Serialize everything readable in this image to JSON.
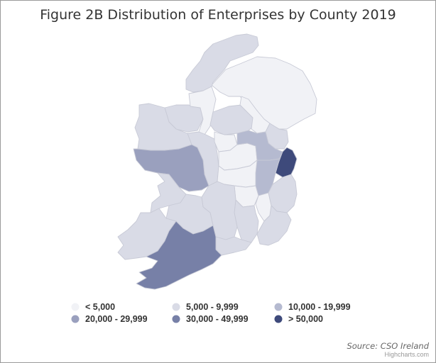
{
  "title": "Figure 2B Distribution of Enterprises by County 2019",
  "source": "Source: CSO Ireland",
  "credits": "Highcharts.com",
  "legend": [
    {
      "label": "< 5,000",
      "color": "#f1f2f6"
    },
    {
      "label": "5,000 - 9,999",
      "color": "#d9dbe6"
    },
    {
      "label": "10,000 - 19,999",
      "color": "#b5bad0"
    },
    {
      "label": "20,000 - 29,999",
      "color": "#9aa0be"
    },
    {
      "label": "30,000 - 49,999",
      "color": "#7780a7"
    },
    {
      "label": "> 50,000",
      "color": "#3e4a7b"
    }
  ],
  "chart_data": {
    "type": "choropleth",
    "legend_placement": "bottom",
    "regions": [
      {
        "name": "Northern Ireland",
        "class": 0
      },
      {
        "name": "Donegal",
        "class": 1
      },
      {
        "name": "Mayo",
        "class": 1
      },
      {
        "name": "Galway",
        "class": 3
      },
      {
        "name": "Sligo",
        "class": 1
      },
      {
        "name": "Leitrim",
        "class": 0
      },
      {
        "name": "Roscommon",
        "class": 1
      },
      {
        "name": "Longford",
        "class": 0
      },
      {
        "name": "Cavan",
        "class": 1
      },
      {
        "name": "Monaghan",
        "class": 0
      },
      {
        "name": "Louth",
        "class": 1
      },
      {
        "name": "Meath",
        "class": 2
      },
      {
        "name": "Westmeath",
        "class": 0
      },
      {
        "name": "Offaly",
        "class": 0
      },
      {
        "name": "Laois",
        "class": 0
      },
      {
        "name": "Kildare",
        "class": 2
      },
      {
        "name": "Dublin",
        "class": 5
      },
      {
        "name": "Wicklow",
        "class": 1
      },
      {
        "name": "Carlow",
        "class": 0
      },
      {
        "name": "Kilkenny",
        "class": 1
      },
      {
        "name": "Wexford",
        "class": 1
      },
      {
        "name": "Waterford",
        "class": 1
      },
      {
        "name": "Tipperary",
        "class": 1
      },
      {
        "name": "Clare",
        "class": 1
      },
      {
        "name": "Limerick",
        "class": 1
      },
      {
        "name": "Kerry",
        "class": 1
      },
      {
        "name": "Cork",
        "class": 4
      }
    ]
  }
}
